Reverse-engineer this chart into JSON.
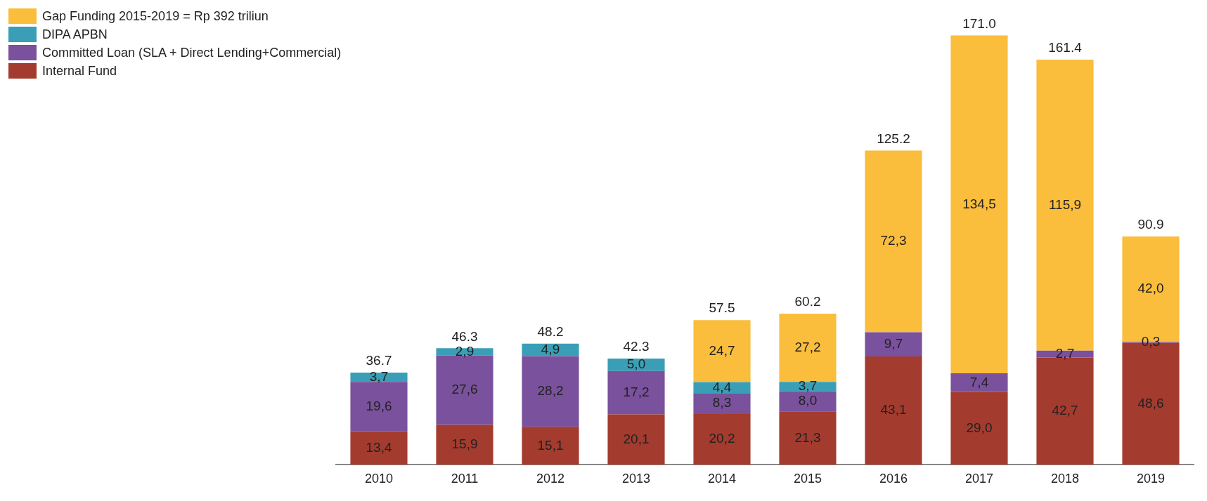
{
  "chart_data": {
    "type": "bar",
    "stacked": true,
    "legend": "top left",
    "grid": false,
    "categories": [
      "2010",
      "2011",
      "2012",
      "2013",
      "2014",
      "2015",
      "2016",
      "2017",
      "2018",
      "2019"
    ],
    "series": [
      {
        "name": "Internal Fund",
        "color": "#a33b2e",
        "values": [
          13.4,
          15.9,
          15.1,
          20.1,
          20.2,
          21.3,
          43.1,
          29.0,
          42.7,
          48.6
        ],
        "value_labels": [
          "13,4",
          "15,9",
          "15,1",
          "20,1",
          "20,2",
          "21,3",
          "43,1",
          "29,0",
          "42,7",
          "48,6"
        ]
      },
      {
        "name": "Committed Loan (SLA + Direct Lending+Commercial)",
        "color": "#7a519c",
        "values": [
          19.6,
          27.6,
          28.2,
          17.2,
          8.3,
          8.0,
          9.7,
          7.4,
          2.7,
          0.3
        ],
        "value_labels": [
          "19,6",
          "27,6",
          "28,2",
          "17,2",
          "8,3",
          "8,0",
          "9,7",
          "7,4",
          "2,7",
          "0,3"
        ]
      },
      {
        "name": "DIPA APBN",
        "color": "#3a9fb6",
        "values": [
          3.7,
          2.9,
          4.9,
          5.0,
          4.4,
          3.7,
          null,
          null,
          null,
          null
        ],
        "value_labels": [
          "3,7",
          "2,9",
          "4,9",
          "5,0",
          "4,4",
          "3,7",
          null,
          null,
          null,
          null
        ]
      },
      {
        "name": "Gap Funding 2015-2019 = Rp 392 triliun",
        "color": "#fbbd3c",
        "values": [
          null,
          null,
          null,
          null,
          24.7,
          27.2,
          72.3,
          134.5,
          115.9,
          42.0
        ],
        "value_labels": [
          null,
          null,
          null,
          null,
          "24,7",
          "27,2",
          "72,3",
          "134,5",
          "115,9",
          "42,0"
        ]
      }
    ],
    "totals": [
      "36.7",
      "46.3",
      "48.2",
      "42.3",
      "57.5",
      "60.2",
      "125.2",
      "171.0",
      "161.4",
      "90.9"
    ]
  }
}
